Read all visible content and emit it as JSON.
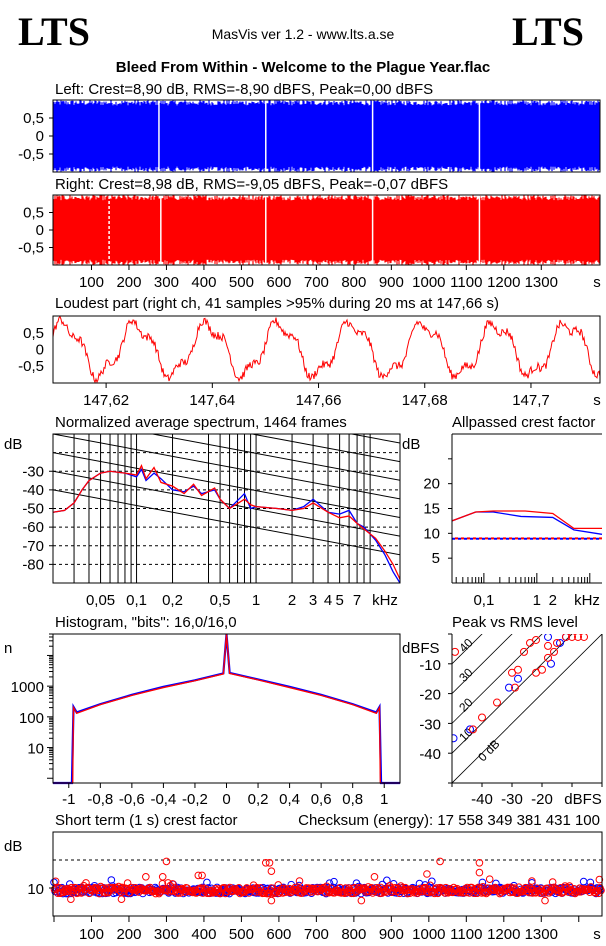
{
  "header": {
    "logo_left": "LTS",
    "logo_right": "LTS",
    "app_title": "MasVis ver 1.2 - www.lts.a.se",
    "file_title": "Bleed From Within - Welcome to the Plague Year.flac"
  },
  "colors": {
    "left": "#0000ff",
    "right": "#ff0000"
  },
  "chart_data": [
    {
      "id": "waveform_left",
      "type": "area",
      "title": "Left: Crest=8,90 dB, RMS=-8,90 dBFS, Peak=0,00 dBFS",
      "ylim": [
        -1,
        1
      ],
      "yticks": [
        "0,5",
        "0",
        "-0,5"
      ],
      "xlim": [
        0,
        1462
      ],
      "quiet_moments_s": [
        280,
        565,
        850,
        1135
      ],
      "color": "#0000ff"
    },
    {
      "id": "waveform_right",
      "type": "area",
      "title": "Right: Crest=8,98 dB, RMS=-9,05 dBFS, Peak=-0,07 dBFS",
      "ylim": [
        -1,
        1
      ],
      "yticks": [
        "0,5",
        "0",
        "-0,5"
      ],
      "xlim": [
        0,
        1462
      ],
      "xticks": [
        "100",
        "200",
        "300",
        "400",
        "500",
        "600",
        "700",
        "800",
        "900",
        "1000",
        "1100",
        "1200",
        "1300"
      ],
      "xunit": "s",
      "quiet_moments_s": [
        147,
        285,
        565,
        850,
        1135
      ],
      "color": "#ff0000"
    },
    {
      "id": "loudest_part",
      "type": "line",
      "title": "Loudest part (right ch, 41 samples >95% during 20 ms at 147,66 s)",
      "ylim": [
        -1,
        1
      ],
      "yticks": [
        "0,5",
        "0",
        "-0,5"
      ],
      "xlim": [
        147.61,
        147.713
      ],
      "xticks": [
        "147,62",
        "147,64",
        "147,66",
        "147,68",
        "147,7"
      ],
      "xunit": "s",
      "color": "#ff0000"
    },
    {
      "id": "spectrum",
      "type": "line",
      "title": "Normalized average spectrum, 1464 frames",
      "ylabel": "dB",
      "xunit": "kHz",
      "xscale": "log",
      "xlim": [
        0.02,
        16
      ],
      "ylim": [
        -90,
        -10
      ],
      "yticks": [
        "-30",
        "-40",
        "-50",
        "-60",
        "-70",
        "-80"
      ],
      "xticks": [
        "0,05",
        "0,1",
        "0,2",
        "0,5",
        "1",
        "2",
        "3",
        "4",
        "5",
        "7"
      ],
      "series": [
        {
          "color": "#0000ff",
          "points": [
            [
              0.02,
              -52
            ],
            [
              0.025,
              -51
            ],
            [
              0.03,
              -47
            ],
            [
              0.035,
              -40
            ],
            [
              0.04,
              -35
            ],
            [
              0.05,
              -31
            ],
            [
              0.06,
              -30
            ],
            [
              0.08,
              -31
            ],
            [
              0.1,
              -33
            ],
            [
              0.11,
              -29
            ],
            [
              0.12,
              -35
            ],
            [
              0.14,
              -31
            ],
            [
              0.16,
              -34
            ],
            [
              0.2,
              -40
            ],
            [
              0.25,
              -41
            ],
            [
              0.3,
              -38
            ],
            [
              0.35,
              -42
            ],
            [
              0.45,
              -40
            ],
            [
              0.5,
              -45
            ],
            [
              0.6,
              -50
            ],
            [
              0.8,
              -42
            ],
            [
              0.9,
              -50
            ],
            [
              1,
              -49
            ],
            [
              1.5,
              -50
            ],
            [
              2,
              -51
            ],
            [
              2.5,
              -49
            ],
            [
              3,
              -45
            ],
            [
              4,
              -52
            ],
            [
              5,
              -53
            ],
            [
              6,
              -51
            ],
            [
              7,
              -58
            ],
            [
              8,
              -60
            ],
            [
              10,
              -67
            ],
            [
              12,
              -75
            ],
            [
              14,
              -84
            ],
            [
              16,
              -90
            ]
          ]
        },
        {
          "color": "#ff0000",
          "points": [
            [
              0.02,
              -52
            ],
            [
              0.025,
              -51
            ],
            [
              0.03,
              -47
            ],
            [
              0.035,
              -40
            ],
            [
              0.04,
              -35
            ],
            [
              0.05,
              -31
            ],
            [
              0.06,
              -30
            ],
            [
              0.08,
              -31
            ],
            [
              0.1,
              -32
            ],
            [
              0.11,
              -27
            ],
            [
              0.12,
              -34
            ],
            [
              0.14,
              -28
            ],
            [
              0.16,
              -36
            ],
            [
              0.2,
              -38
            ],
            [
              0.25,
              -42
            ],
            [
              0.3,
              -37
            ],
            [
              0.35,
              -43
            ],
            [
              0.45,
              -39
            ],
            [
              0.5,
              -45
            ],
            [
              0.6,
              -50
            ],
            [
              0.8,
              -45
            ],
            [
              0.9,
              -48
            ],
            [
              1,
              -49
            ],
            [
              1.5,
              -50
            ],
            [
              2,
              -51
            ],
            [
              2.5,
              -50
            ],
            [
              3,
              -47
            ],
            [
              4,
              -52
            ],
            [
              5,
              -55
            ],
            [
              6,
              -54
            ],
            [
              7,
              -58
            ],
            [
              8,
              -61
            ],
            [
              10,
              -66
            ],
            [
              12,
              -73
            ],
            [
              14,
              -80
            ],
            [
              16,
              -88
            ]
          ]
        }
      ]
    },
    {
      "id": "allpassed_crest",
      "type": "line",
      "title": "Allpassed crest factor",
      "ylabel": "dB",
      "xunit": "kHz",
      "xscale": "log",
      "xlim": [
        0.025,
        17
      ],
      "ylim": [
        0,
        30
      ],
      "yticks": [
        "20",
        "15",
        "10",
        "5"
      ],
      "xticks": [
        "0,1",
        "1",
        "2"
      ],
      "series": [
        {
          "color": "#0000ff",
          "points": [
            [
              0.025,
              12.5
            ],
            [
              0.07,
              14.3
            ],
            [
              0.15,
              14.3
            ],
            [
              0.5,
              13.4
            ],
            [
              2,
              13.2
            ],
            [
              5,
              10.7
            ],
            [
              17,
              9.8
            ]
          ],
          "reference": 8.9
        },
        {
          "color": "#ff0000",
          "points": [
            [
              0.025,
              12.5
            ],
            [
              0.07,
              14.3
            ],
            [
              0.15,
              14.5
            ],
            [
              0.6,
              14.5
            ],
            [
              2,
              14
            ],
            [
              5,
              11
            ],
            [
              17,
              11
            ]
          ],
          "reference": 8.98
        }
      ]
    },
    {
      "id": "histogram",
      "type": "line",
      "title": "Histogram, \"bits\": 16,0/16,0",
      "ylabel": "n",
      "yscale": "log",
      "xlim": [
        -1.1,
        1.1
      ],
      "ylim": [
        0.7,
        50000
      ],
      "yticks": [
        "1000",
        "100",
        "10"
      ],
      "xticks": [
        "-1",
        "-0,8",
        "-0,6",
        "-0,4",
        "-0,2",
        "0",
        "0,2",
        "0,4",
        "0,6",
        "0,8",
        "1"
      ],
      "series": [
        {
          "color": "#0000ff",
          "points": [
            [
              -1.1,
              0.7
            ],
            [
              -0.98,
              0.7
            ],
            [
              -0.97,
              210
            ],
            [
              -0.95,
              140
            ],
            [
              -0.8,
              260
            ],
            [
              -0.6,
              520
            ],
            [
              -0.4,
              950
            ],
            [
              -0.2,
              1550
            ],
            [
              -0.02,
              2600
            ],
            [
              0,
              50000
            ],
            [
              0.02,
              2700
            ],
            [
              0.2,
              1650
            ],
            [
              0.4,
              950
            ],
            [
              0.6,
              520
            ],
            [
              0.8,
              260
            ],
            [
              0.95,
              140
            ],
            [
              0.97,
              210
            ],
            [
              0.98,
              0.7
            ],
            [
              1.1,
              0.7
            ]
          ]
        },
        {
          "color": "#ff0000",
          "points": [
            [
              -1.1,
              0.7
            ],
            [
              -0.975,
              0.7
            ],
            [
              -0.97,
              200
            ],
            [
              -0.95,
              130
            ],
            [
              -0.8,
              250
            ],
            [
              -0.6,
              500
            ],
            [
              -0.4,
              900
            ],
            [
              -0.2,
              1500
            ],
            [
              -0.02,
              2500
            ],
            [
              0,
              50000
            ],
            [
              0.02,
              2600
            ],
            [
              0.2,
              1600
            ],
            [
              0.4,
              900
            ],
            [
              0.6,
              500
            ],
            [
              0.8,
              250
            ],
            [
              0.95,
              130
            ],
            [
              0.97,
              200
            ],
            [
              0.975,
              0.7
            ],
            [
              1.1,
              0.7
            ]
          ]
        }
      ]
    },
    {
      "id": "peak_vs_rms",
      "type": "scatter",
      "title": "Peak vs RMS level",
      "ylabel": "dBFS",
      "xunit": "dBFS",
      "xlim": [
        -50,
        0
      ],
      "ylim": [
        -50,
        0
      ],
      "yticks": [
        "-10",
        "-20",
        "-30",
        "-40"
      ],
      "xticks": [
        "-40",
        "-30",
        "-20"
      ],
      "crest_lines": [
        "0 dB",
        "10",
        "20",
        "30",
        "40"
      ],
      "series": [
        {
          "color": "#0000ff",
          "points": [
            [
              -49.5,
              -35
            ],
            [
              -44,
              -32
            ],
            [
              -31,
              -18
            ],
            [
              -28,
              -15
            ],
            [
              -18,
              -1
            ],
            [
              -17,
              -10
            ],
            [
              -14,
              -3
            ],
            [
              -12,
              -1
            ]
          ]
        },
        {
          "color": "#ff0000",
          "points": [
            [
              -12,
              -1
            ],
            [
              -10,
              -1
            ],
            [
              -8,
              -1
            ],
            [
              -6,
              -1
            ],
            [
              -15,
              -3
            ],
            [
              -16,
              -6
            ],
            [
              -18,
              -8
            ],
            [
              -20,
              -12
            ],
            [
              -22,
              -13
            ],
            [
              -26,
              -6
            ],
            [
              -28,
              -12
            ],
            [
              -30,
              -13
            ],
            [
              -29,
              -18
            ],
            [
              -35,
              -23
            ],
            [
              -40,
              -28
            ],
            [
              -43,
              -32
            ],
            [
              -22,
              -2
            ],
            [
              -49,
              -6
            ],
            [
              -18,
              -4
            ],
            [
              -24,
              -3
            ]
          ]
        }
      ]
    },
    {
      "id": "short_term_crest",
      "type": "scatter",
      "title": "Short term (1 s) crest factor",
      "checksum": "Checksum (energy):  17 558 349 381 431 100",
      "ylabel": "dB",
      "xlim": [
        0,
        1462
      ],
      "ylim": [
        0,
        30
      ],
      "yticks": [
        "10"
      ],
      "reference_line_db": 20,
      "xticks": [
        "100",
        "200",
        "300",
        "400",
        "500",
        "600",
        "700",
        "800",
        "900",
        "1000",
        "1100",
        "1200",
        "1300"
      ],
      "xunit": "s",
      "baseline_db": 9,
      "outliers": [
        [
          245,
          14
        ],
        [
          290,
          14
        ],
        [
          300,
          19.5
        ],
        [
          385,
          14.5
        ],
        [
          395,
          14.5
        ],
        [
          565,
          19
        ],
        [
          575,
          19
        ],
        [
          580,
          16
        ],
        [
          655,
          12.5
        ],
        [
          855,
          14
        ],
        [
          995,
          15
        ],
        [
          1030,
          19.5
        ],
        [
          1135,
          19
        ],
        [
          1135,
          15.5
        ],
        [
          1275,
          12.5
        ],
        [
          1455,
          13
        ],
        [
          180,
          6
        ],
        [
          45,
          6
        ],
        [
          580,
          5.5
        ],
        [
          820,
          5.5
        ],
        [
          1310,
          5.5
        ]
      ]
    }
  ]
}
